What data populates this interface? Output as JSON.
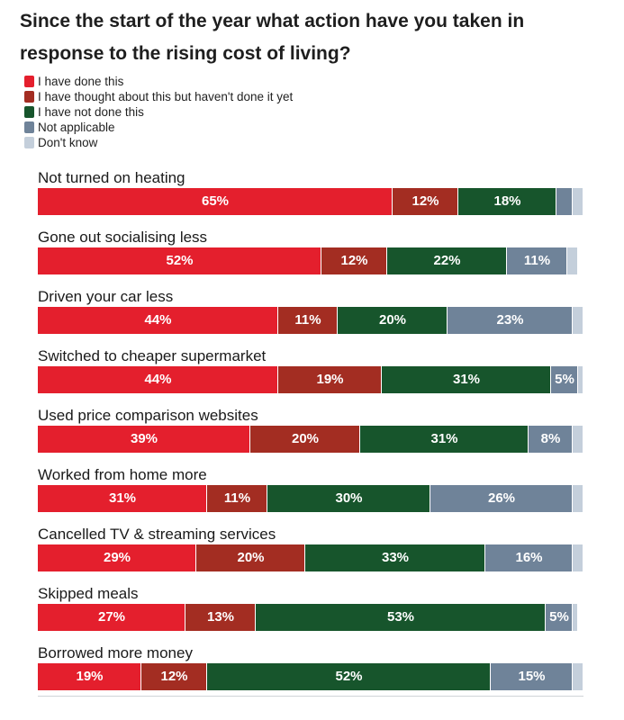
{
  "title": "Since the start of the year what action have you taken in response to the rising cost of living?",
  "legend": [
    {
      "label": "I have done this",
      "color": "#e41f2d"
    },
    {
      "label": "I have thought about this but haven't done it yet",
      "color": "#a32d22"
    },
    {
      "label": "I have not done this",
      "color": "#17552c"
    },
    {
      "label": "Not applicable",
      "color": "#6f8399"
    },
    {
      "label": "Don't know",
      "color": "#c4cfdb"
    }
  ],
  "chart_data": {
    "type": "bar",
    "orientation": "horizontal",
    "stacked": true,
    "title": "Since the start of the year what action have you taken in response to the rising cost of living?",
    "unit": "%",
    "categories": [
      "Not turned on heating",
      "Gone out socialising less",
      "Driven your car less",
      "Switched to cheaper supermarket",
      "Used price comparison websites",
      "Worked from home more",
      "Cancelled TV & streaming services",
      "Skipped meals",
      "Borrowed more money"
    ],
    "series": [
      {
        "name": "I have done this",
        "color": "#e41f2d",
        "values": [
          65,
          52,
          44,
          44,
          39,
          31,
          29,
          27,
          19
        ]
      },
      {
        "name": "I have thought about this but haven't done it yet",
        "color": "#a32d22",
        "values": [
          12,
          12,
          11,
          19,
          20,
          11,
          20,
          13,
          12
        ]
      },
      {
        "name": "I have not done this",
        "color": "#17552c",
        "values": [
          18,
          22,
          20,
          31,
          31,
          30,
          33,
          53,
          52
        ]
      },
      {
        "name": "Not applicable",
        "color": "#6f8399",
        "values": [
          3,
          11,
          23,
          5,
          8,
          26,
          16,
          5,
          15
        ]
      },
      {
        "name": "Don't know",
        "color": "#c4cfdb",
        "values": [
          2,
          2,
          2,
          1,
          2,
          2,
          2,
          1,
          2
        ]
      }
    ],
    "value_labels": [
      [
        "65%",
        "12%",
        "18%",
        "",
        ""
      ],
      [
        "52%",
        "12%",
        "22%",
        "11%",
        ""
      ],
      [
        "44%",
        "11%",
        "20%",
        "23%",
        ""
      ],
      [
        "44%",
        "19%",
        "31%",
        "5%",
        ""
      ],
      [
        "39%",
        "20%",
        "31%",
        "8%",
        ""
      ],
      [
        "31%",
        "11%",
        "30%",
        "26%",
        ""
      ],
      [
        "29%",
        "20%",
        "33%",
        "16%",
        ""
      ],
      [
        "27%",
        "13%",
        "53%",
        "5%",
        ""
      ],
      [
        "19%",
        "12%",
        "52%",
        "15%",
        ""
      ]
    ],
    "xlim": [
      0,
      100
    ]
  }
}
